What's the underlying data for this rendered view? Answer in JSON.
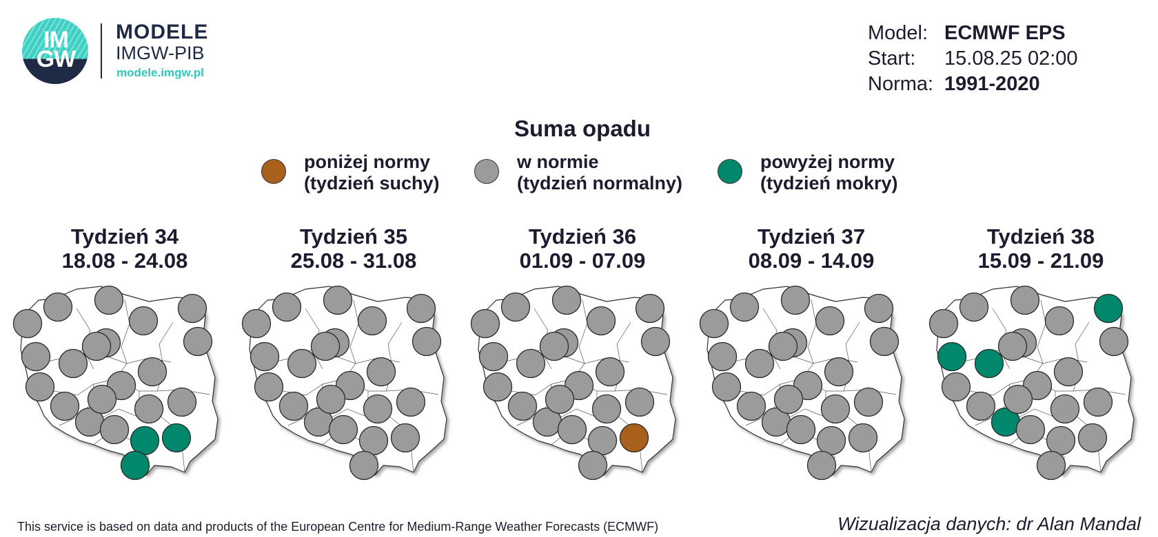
{
  "logo": {
    "mark_text": "IM GW",
    "title": "MODELE",
    "subtitle": "IMGW-PIB",
    "url": "modele.imgw.pl"
  },
  "meta": {
    "model_label": "Model:",
    "model_value": "ECMWF EPS",
    "start_label": "Start:",
    "start_value": "15.08.25 02:00",
    "norm_label": "Norma:",
    "norm_value": "1991-2020"
  },
  "title": "Suma opadu",
  "legend": [
    {
      "line1": "poniżej normy",
      "line2": "(tydzień suchy)",
      "color": "#a8601c"
    },
    {
      "line1": "w normie",
      "line2": "(tydzień normalny)",
      "color": "#9b9b9b"
    },
    {
      "line1": "powyżej normy",
      "line2": "(tydzień mokry)",
      "color": "#00876c"
    }
  ],
  "colors": {
    "below": "#a8601c",
    "normal": "#9b9b9b",
    "above": "#00876c",
    "map_fill": "#ffffff",
    "map_stroke": "#333333"
  },
  "weeks": [
    {
      "label": "Tydzień 34",
      "dates": "18.08 - 24.08",
      "regions": [
        "N",
        "N",
        "N",
        "N",
        "N",
        "N",
        "N",
        "N",
        "N",
        "N",
        "N",
        "N",
        "N",
        "N",
        "N",
        "N",
        "N",
        "A",
        "A",
        "A",
        "N",
        "N"
      ]
    },
    {
      "label": "Tydzień 35",
      "dates": "25.08 - 31.08",
      "regions": [
        "N",
        "N",
        "N",
        "N",
        "N",
        "N",
        "N",
        "N",
        "N",
        "N",
        "N",
        "N",
        "N",
        "N",
        "N",
        "N",
        "N",
        "N",
        "N",
        "N",
        "N",
        "N"
      ]
    },
    {
      "label": "Tydzień 36",
      "dates": "01.09 - 07.09",
      "regions": [
        "N",
        "N",
        "N",
        "N",
        "N",
        "N",
        "N",
        "N",
        "N",
        "N",
        "N",
        "N",
        "N",
        "N",
        "N",
        "N",
        "N",
        "N",
        "B",
        "N",
        "N",
        "N"
      ]
    },
    {
      "label": "Tydzień 37",
      "dates": "08.09 - 14.09",
      "regions": [
        "N",
        "N",
        "N",
        "N",
        "N",
        "N",
        "N",
        "N",
        "N",
        "N",
        "N",
        "N",
        "N",
        "N",
        "N",
        "N",
        "N",
        "N",
        "N",
        "N",
        "N",
        "N"
      ]
    },
    {
      "label": "Tydzień 38",
      "dates": "15.09 - 21.09",
      "regions": [
        "N",
        "N",
        "N",
        "N",
        "A",
        "N",
        "N",
        "A",
        "A",
        "N",
        "N",
        "N",
        "N",
        "A",
        "N",
        "N",
        "N",
        "N",
        "N",
        "N",
        "N",
        "N"
      ]
    }
  ],
  "footer": {
    "left": "This service is based on data and products of the European Centre for Medium-Range Weather Forecasts (ECMWF)",
    "right": "Wizualizacja danych: dr Alan Mandal"
  }
}
